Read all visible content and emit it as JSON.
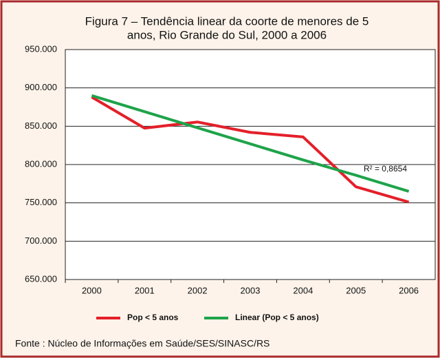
{
  "chart_data": {
    "type": "line",
    "title": [
      "Figura 7 – Tendência linear da coorte de  menores de 5",
      "anos, Rio Grande do Sul,  2000 a 2006"
    ],
    "categories": [
      "2000",
      "2001",
      "2002",
      "2003",
      "2004",
      "2005",
      "2006"
    ],
    "series": [
      {
        "name": "Pop < 5 anos",
        "color": "#e3202a",
        "values": [
          888000,
          847500,
          855500,
          842000,
          836000,
          771000,
          751000
        ]
      },
      {
        "name": "Linear (Pop < 5 anos)",
        "color": "#1ea34a",
        "values": [
          890000,
          869000,
          848000,
          827000,
          806000,
          786000,
          765000
        ]
      }
    ],
    "ylim": [
      650000,
      950000
    ],
    "yticks": [
      {
        "value": 650000,
        "label": "650.000"
      },
      {
        "value": 700000,
        "label": "700.000"
      },
      {
        "value": 750000,
        "label": "750.000"
      },
      {
        "value": 800000,
        "label": "800.000"
      },
      {
        "value": 850000,
        "label": "850.000"
      },
      {
        "value": 900000,
        "label": "900.000"
      },
      {
        "value": 950000,
        "label": "950.000"
      }
    ],
    "grid": true,
    "annotation": "R² = 0,8654",
    "source": "Fonte : Núcleo de Informações em Saúde/SES/SINASC/RS"
  }
}
